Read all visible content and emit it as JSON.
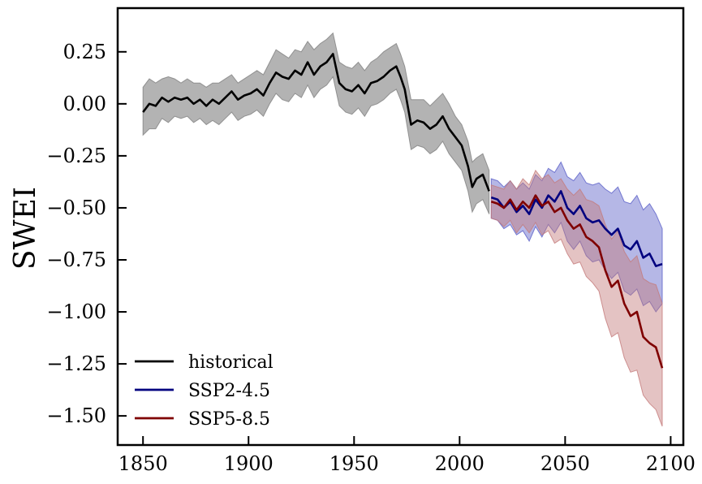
{
  "chart_data": {
    "type": "line",
    "title": "",
    "xlabel": "",
    "ylabel": "SWEI",
    "xlim": [
      1838,
      2106
    ],
    "ylim": [
      -1.64,
      0.46
    ],
    "xticks": [
      1850,
      1900,
      1950,
      2000,
      2050,
      2100
    ],
    "yticks": [
      0.25,
      0.0,
      -0.25,
      -0.5,
      -0.75,
      -1.0,
      -1.25,
      -1.5
    ],
    "xtick_labels": [
      "1850",
      "1900",
      "1950",
      "2000",
      "2050",
      "2100"
    ],
    "ytick_labels": [
      "0.25",
      "0.00",
      "−0.25",
      "−0.50",
      "−0.75",
      "−1.00",
      "−1.25",
      "−1.50"
    ],
    "grid": false,
    "legend_position": "lower-left",
    "series": [
      {
        "name": "historical",
        "color": "#000000",
        "band_color": "#808080",
        "x": [
          1850,
          1853,
          1856,
          1859,
          1862,
          1865,
          1868,
          1871,
          1874,
          1877,
          1880,
          1883,
          1886,
          1889,
          1892,
          1895,
          1898,
          1901,
          1904,
          1907,
          1910,
          1913,
          1916,
          1919,
          1922,
          1925,
          1928,
          1931,
          1934,
          1937,
          1940,
          1943,
          1946,
          1949,
          1952,
          1955,
          1958,
          1961,
          1964,
          1967,
          1970,
          1972,
          1974,
          1977,
          1980,
          1983,
          1986,
          1989,
          1992,
          1995,
          1998,
          2001,
          2004,
          2006,
          2008,
          2011,
          2014
        ],
        "values": [
          -0.04,
          0.0,
          -0.01,
          0.03,
          0.01,
          0.03,
          0.02,
          0.03,
          0.0,
          0.02,
          -0.01,
          0.02,
          0.0,
          0.03,
          0.06,
          0.02,
          0.04,
          0.05,
          0.07,
          0.04,
          0.1,
          0.15,
          0.13,
          0.12,
          0.16,
          0.14,
          0.2,
          0.14,
          0.18,
          0.2,
          0.24,
          0.1,
          0.07,
          0.06,
          0.09,
          0.05,
          0.1,
          0.11,
          0.13,
          0.16,
          0.18,
          0.13,
          0.07,
          -0.1,
          -0.08,
          -0.09,
          -0.12,
          -0.1,
          -0.06,
          -0.12,
          -0.16,
          -0.2,
          -0.3,
          -0.4,
          -0.36,
          -0.34,
          -0.42
        ],
        "upper": [
          0.08,
          0.12,
          0.1,
          0.12,
          0.13,
          0.12,
          0.1,
          0.12,
          0.1,
          0.1,
          0.08,
          0.1,
          0.1,
          0.12,
          0.14,
          0.1,
          0.12,
          0.14,
          0.16,
          0.14,
          0.2,
          0.26,
          0.24,
          0.22,
          0.26,
          0.25,
          0.3,
          0.26,
          0.29,
          0.31,
          0.34,
          0.2,
          0.18,
          0.17,
          0.2,
          0.16,
          0.2,
          0.22,
          0.25,
          0.27,
          0.29,
          0.24,
          0.18,
          0.02,
          0.02,
          0.02,
          -0.01,
          0.02,
          0.05,
          0.0,
          -0.06,
          -0.1,
          -0.18,
          -0.28,
          -0.26,
          -0.24,
          -0.32
        ],
        "lower": [
          -0.15,
          -0.12,
          -0.12,
          -0.07,
          -0.09,
          -0.06,
          -0.07,
          -0.06,
          -0.09,
          -0.07,
          -0.1,
          -0.08,
          -0.1,
          -0.07,
          -0.04,
          -0.08,
          -0.06,
          -0.05,
          -0.03,
          -0.06,
          0.0,
          0.05,
          0.02,
          0.01,
          0.05,
          0.03,
          0.09,
          0.03,
          0.07,
          0.09,
          0.13,
          -0.01,
          -0.04,
          -0.05,
          -0.02,
          -0.06,
          -0.01,
          0.0,
          0.02,
          0.05,
          0.07,
          0.02,
          -0.04,
          -0.22,
          -0.2,
          -0.21,
          -0.24,
          -0.22,
          -0.18,
          -0.24,
          -0.28,
          -0.32,
          -0.42,
          -0.52,
          -0.48,
          -0.46,
          -0.53
        ]
      },
      {
        "name": "SSP2-4.5",
        "color": "#00007f",
        "band_color": "#5a5fc8",
        "x": [
          2015,
          2018,
          2021,
          2024,
          2027,
          2030,
          2033,
          2036,
          2039,
          2042,
          2045,
          2048,
          2051,
          2054,
          2057,
          2060,
          2063,
          2066,
          2069,
          2072,
          2075,
          2078,
          2081,
          2084,
          2087,
          2090,
          2093,
          2096
        ],
        "values": [
          -0.45,
          -0.46,
          -0.5,
          -0.47,
          -0.52,
          -0.49,
          -0.53,
          -0.46,
          -0.5,
          -0.44,
          -0.47,
          -0.42,
          -0.5,
          -0.53,
          -0.49,
          -0.55,
          -0.57,
          -0.56,
          -0.6,
          -0.63,
          -0.6,
          -0.68,
          -0.7,
          -0.66,
          -0.74,
          -0.72,
          -0.78,
          -0.77
        ],
        "upper": [
          -0.36,
          -0.37,
          -0.4,
          -0.37,
          -0.41,
          -0.38,
          -0.41,
          -0.34,
          -0.37,
          -0.31,
          -0.33,
          -0.28,
          -0.35,
          -0.37,
          -0.33,
          -0.38,
          -0.39,
          -0.38,
          -0.41,
          -0.43,
          -0.4,
          -0.47,
          -0.48,
          -0.44,
          -0.51,
          -0.48,
          -0.53,
          -0.6
        ],
        "lower": [
          -0.55,
          -0.56,
          -0.6,
          -0.58,
          -0.63,
          -0.61,
          -0.66,
          -0.59,
          -0.64,
          -0.58,
          -0.62,
          -0.57,
          -0.66,
          -0.7,
          -0.66,
          -0.73,
          -0.76,
          -0.75,
          -0.8,
          -0.84,
          -0.81,
          -0.9,
          -0.92,
          -0.89,
          -0.97,
          -0.95,
          -1.0,
          -0.96
        ]
      },
      {
        "name": "SSP5-8.5",
        "color": "#7f0000",
        "band_color": "#c47a7a",
        "x": [
          2015,
          2018,
          2021,
          2024,
          2027,
          2030,
          2033,
          2036,
          2039,
          2042,
          2045,
          2048,
          2051,
          2054,
          2057,
          2060,
          2063,
          2066,
          2069,
          2072,
          2075,
          2078,
          2081,
          2084,
          2087,
          2090,
          2093,
          2096
        ],
        "values": [
          -0.47,
          -0.48,
          -0.5,
          -0.46,
          -0.51,
          -0.47,
          -0.5,
          -0.44,
          -0.49,
          -0.47,
          -0.52,
          -0.5,
          -0.56,
          -0.6,
          -0.58,
          -0.64,
          -0.66,
          -0.69,
          -0.8,
          -0.88,
          -0.85,
          -0.96,
          -1.02,
          -1.0,
          -1.12,
          -1.15,
          -1.17,
          -1.27
        ],
        "upper": [
          -0.39,
          -0.4,
          -0.41,
          -0.37,
          -0.41,
          -0.36,
          -0.39,
          -0.32,
          -0.36,
          -0.34,
          -0.38,
          -0.36,
          -0.41,
          -0.44,
          -0.41,
          -0.46,
          -0.47,
          -0.49,
          -0.58,
          -0.65,
          -0.61,
          -0.71,
          -0.76,
          -0.73,
          -0.84,
          -0.86,
          -0.87,
          -0.96
        ],
        "lower": [
          -0.55,
          -0.56,
          -0.59,
          -0.56,
          -0.62,
          -0.58,
          -0.62,
          -0.57,
          -0.63,
          -0.61,
          -0.67,
          -0.65,
          -0.72,
          -0.77,
          -0.76,
          -0.83,
          -0.86,
          -0.9,
          -1.03,
          -1.12,
          -1.1,
          -1.22,
          -1.29,
          -1.28,
          -1.4,
          -1.44,
          -1.47,
          -1.55
        ]
      }
    ]
  }
}
